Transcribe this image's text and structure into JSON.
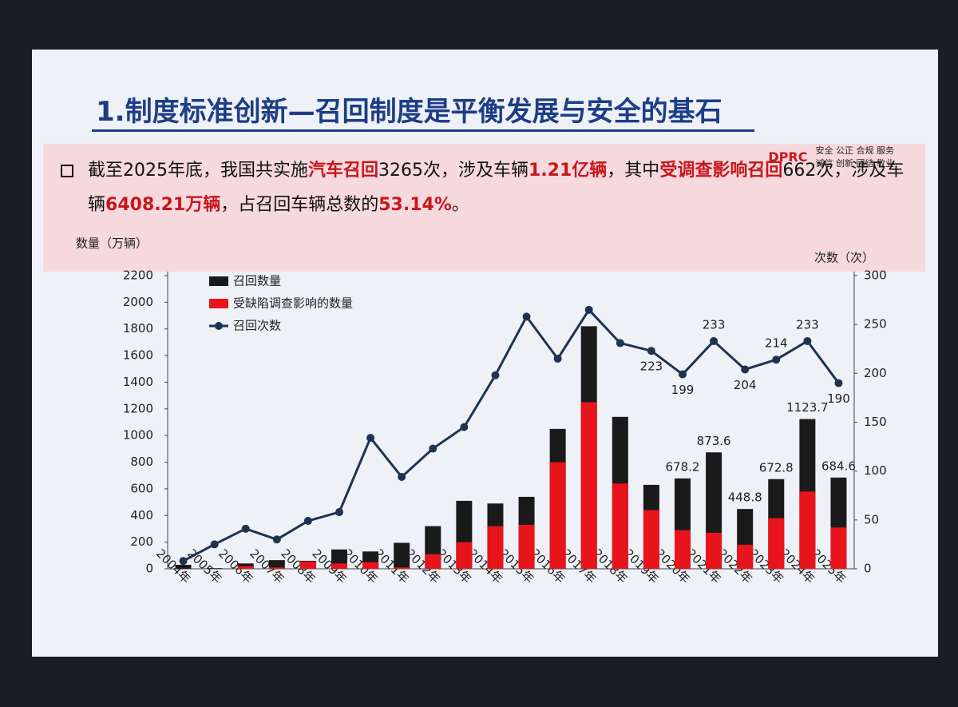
{
  "header": {
    "title": "1.制度标准创新—召回制度是平衡发展与安全的基石",
    "logo": "DPRC",
    "motto_1": "安全 公正 合规 服务",
    "motto_2": "诚信 创新 团结 敬业"
  },
  "summary": {
    "segments": [
      {
        "text": "截至2025年底，我国共实施",
        "highlight": false
      },
      {
        "text": "汽车召回",
        "highlight": true
      },
      {
        "text": "3265次，涉及车辆",
        "highlight": false
      },
      {
        "text": "1.21亿辆",
        "highlight": true
      },
      {
        "text": "，其中",
        "highlight": false
      },
      {
        "text": "受调查影响召回",
        "highlight": true
      },
      {
        "text": "662次，涉及车辆",
        "highlight": false
      },
      {
        "text": "6408.21万辆",
        "highlight": true
      },
      {
        "text": "，占召回车辆总数的",
        "highlight": false
      },
      {
        "text": "53.14%",
        "highlight": true
      },
      {
        "text": "。",
        "highlight": false
      }
    ]
  },
  "chart_data": {
    "type": "bar-line",
    "y_label": "数量（万辆）",
    "y2_label": "次数（次）",
    "categories": [
      "2004年",
      "2005年",
      "2006年",
      "2007年",
      "2008年",
      "2009年",
      "2010年",
      "2011年",
      "2012年",
      "2013年",
      "2014年",
      "2015年",
      "2016年",
      "2017年",
      "2018年",
      "2019年",
      "2020年",
      "2021年",
      "2022年",
      "2023年",
      "2024年",
      "2025年"
    ],
    "series": [
      {
        "name": "召回数量",
        "type": "bar",
        "color": "#1a1a1a",
        "values": [
          30,
          5,
          40,
          65,
          60,
          145,
          130,
          195,
          320,
          510,
          490,
          540,
          1050,
          1820,
          1140,
          630,
          678.2,
          873.6,
          448.8,
          672.8,
          1123.7,
          684.6
        ],
        "value_labels": [
          null,
          null,
          null,
          null,
          null,
          null,
          null,
          null,
          null,
          null,
          null,
          null,
          null,
          null,
          null,
          null,
          "678.2",
          "873.6",
          "448.8",
          "672.8",
          "1123.7",
          "684.6"
        ]
      },
      {
        "name": "受缺陷调查影响的数量",
        "type": "bar",
        "color": "#e8141c",
        "values": [
          0,
          0,
          20,
          10,
          55,
          40,
          50,
          10,
          110,
          200,
          320,
          330,
          800,
          1250,
          640,
          440,
          290,
          270,
          180,
          380,
          580,
          310
        ]
      },
      {
        "name": "召回次数",
        "type": "line",
        "axis": "y2",
        "color": "#1f3350",
        "values": [
          8,
          25,
          41,
          30,
          49,
          58,
          134,
          94,
          123,
          145,
          198,
          258,
          215,
          265,
          231,
          223,
          199,
          233,
          204,
          214,
          233,
          190
        ],
        "value_labels": [
          null,
          null,
          null,
          null,
          null,
          null,
          null,
          null,
          null,
          null,
          null,
          null,
          null,
          null,
          null,
          "223",
          "199",
          "233",
          "204",
          "214",
          "233",
          "190"
        ]
      }
    ],
    "ylim": [
      0,
      2200
    ],
    "yticks": [
      0,
      200,
      400,
      600,
      800,
      1000,
      1200,
      1400,
      1600,
      1800,
      2000,
      2200
    ],
    "y2lim": [
      0,
      300
    ],
    "y2ticks": [
      0,
      50,
      100,
      150,
      200,
      250,
      300
    ]
  }
}
